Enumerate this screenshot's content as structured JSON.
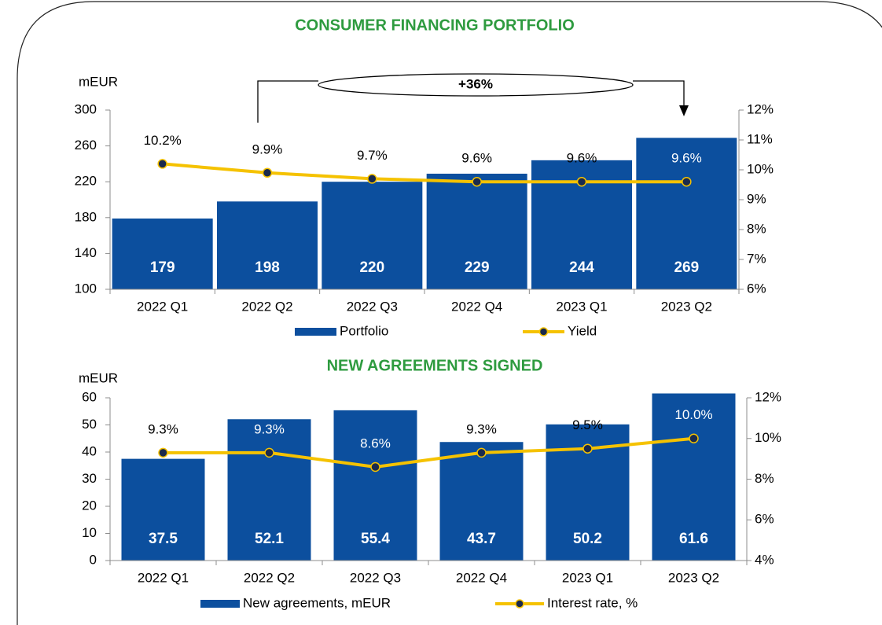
{
  "chart_data": [
    {
      "type": "bar",
      "title": "CONSUMER FINANCING PORTFOLIO",
      "ylabel": "mEUR",
      "annotation": "+36%",
      "categories": [
        "2022 Q1",
        "2022 Q2",
        "2022 Q3",
        "2022 Q4",
        "2023 Q1",
        "2023 Q2"
      ],
      "series": [
        {
          "name": "Portfolio",
          "color": "#0c4f9e",
          "type": "bar",
          "values": [
            179,
            198,
            220,
            229,
            244,
            269
          ]
        },
        {
          "name": "Yield",
          "color": "#f5c200",
          "type": "line",
          "axis": "y2",
          "values": [
            10.2,
            9.9,
            9.7,
            9.6,
            9.6,
            9.6
          ],
          "value_labels": [
            "10.2%",
            "9.9%",
            "9.7%",
            "9.6%",
            "9.6%",
            "9.6%"
          ]
        }
      ],
      "ylim": [
        100,
        300
      ],
      "yticks": [
        100,
        140,
        180,
        220,
        260,
        300
      ],
      "y2lim": [
        6,
        12
      ],
      "y2ticks": [
        {
          "value": 6,
          "label": "6%"
        },
        {
          "value": 7,
          "label": "7%"
        },
        {
          "value": 8,
          "label": "8%"
        },
        {
          "value": 9,
          "label": "9%"
        },
        {
          "value": 10,
          "label": "10%"
        },
        {
          "value": 11,
          "label": "11%"
        },
        {
          "value": 12,
          "label": "12%"
        }
      ],
      "legend": "bottom"
    },
    {
      "type": "bar",
      "title": "NEW AGREEMENTS SIGNED",
      "ylabel": "mEUR",
      "categories": [
        "2022 Q1",
        "2022 Q2",
        "2022 Q3",
        "2022 Q4",
        "2023 Q1",
        "2023 Q2"
      ],
      "series": [
        {
          "name": "New agreements, mEUR",
          "color": "#0c4f9e",
          "type": "bar",
          "values": [
            37.5,
            52.1,
            55.4,
            43.7,
            50.2,
            61.6
          ]
        },
        {
          "name": "Interest rate, %",
          "color": "#f5c200",
          "type": "line",
          "axis": "y2",
          "values": [
            9.3,
            9.3,
            8.6,
            9.3,
            9.5,
            10.0
          ],
          "value_labels": [
            "9.3%",
            "9.3%",
            "8.6%",
            "9.3%",
            "9.5%",
            "10.0%"
          ]
        }
      ],
      "ylim": [
        0,
        60
      ],
      "yticks": [
        0,
        10,
        20,
        30,
        40,
        50,
        60
      ],
      "y2lim": [
        4,
        12
      ],
      "y2ticks": [
        {
          "value": 4,
          "label": "4%"
        },
        {
          "value": 6,
          "label": "6%"
        },
        {
          "value": 8,
          "label": "8%"
        },
        {
          "value": 10,
          "label": "10%"
        },
        {
          "value": 12,
          "label": "12%"
        }
      ],
      "legend": "bottom"
    }
  ]
}
